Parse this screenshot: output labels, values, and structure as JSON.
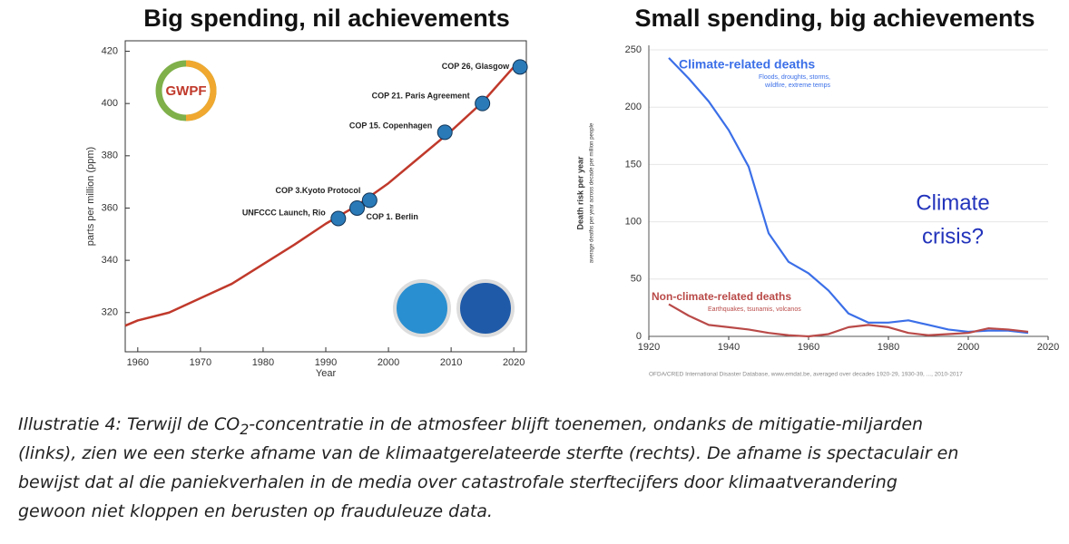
{
  "chart_data": [
    {
      "type": "line",
      "title": "Big spending, nil achievements",
      "xlabel": "Year",
      "ylabel": "parts per million (ppm)",
      "x": [
        1958,
        1960,
        1965,
        1970,
        1975,
        1980,
        1985,
        1990,
        1995,
        2000,
        2005,
        2010,
        2015,
        2020
      ],
      "series": [
        {
          "color": "#c0392b",
          "values": [
            315,
            317,
            320,
            325.5,
            331,
            338.5,
            346,
            354,
            361,
            369.5,
            379.5,
            389.5,
            400.5,
            414
          ]
        }
      ],
      "annotations": [
        {
          "label": "UNFCCC Launch, Rio",
          "x": 1992,
          "y": 356
        },
        {
          "label": "COP 1. Berlin",
          "x": 1995,
          "y": 360
        },
        {
          "label": "COP 3.Kyoto Protocol",
          "x": 1997,
          "y": 363
        },
        {
          "label": "COP 15. Copenhagen",
          "x": 2009,
          "y": 389
        },
        {
          "label": "COP 21. Paris Agreement",
          "x": 2015,
          "y": 400
        },
        {
          "label": "COP 26, Glasgow",
          "x": 2021,
          "y": 414
        }
      ],
      "logo": "GWPF",
      "xlim": [
        1958,
        2022
      ],
      "ylim": [
        305,
        424
      ],
      "xticks": [
        1960,
        1970,
        1980,
        1990,
        2000,
        2010,
        2020
      ],
      "yticks": [
        320,
        340,
        360,
        380,
        400,
        420
      ],
      "grid": false
    },
    {
      "type": "line",
      "title": "Small spending, big achievements",
      "ylabel": "Death risk per year",
      "ysublabel": "average deaths per year across decade per million people",
      "x": [
        1925,
        1930,
        1935,
        1940,
        1945,
        1950,
        1955,
        1960,
        1965,
        1970,
        1975,
        1980,
        1985,
        1990,
        1995,
        2000,
        2005,
        2010,
        2015
      ],
      "series": [
        {
          "name": "Climate-related deaths",
          "description": [
            "Floods, droughts, storms,",
            "wildfire, extreme temps"
          ],
          "color": "#3b6fe8",
          "values": [
            243,
            225,
            205,
            180,
            148,
            90,
            65,
            55,
            40,
            20,
            12,
            12,
            14,
            10,
            6,
            4,
            5,
            5,
            3
          ]
        },
        {
          "name": "Non-climate-related deaths",
          "description": [
            "Earthquakes, tsunamis, volcanos"
          ],
          "color": "#b94a48",
          "values": [
            28,
            18,
            10,
            8,
            6,
            3,
            1,
            0,
            2,
            8,
            10,
            8,
            3,
            1,
            2,
            3,
            7,
            6,
            4
          ]
        }
      ],
      "annotation": [
        "Climate",
        "crisis?"
      ],
      "source": "OFDA/CRED International Disaster Database, www.emdat.be, averaged over decades 1920-29, 1930-39, ..., 2010-2017",
      "xlim": [
        1920,
        2020
      ],
      "ylim": [
        0,
        250
      ],
      "xticks": [
        1920,
        1940,
        1960,
        1980,
        2000,
        2020
      ],
      "yticks": [
        0,
        50,
        100,
        150,
        200,
        250
      ],
      "grid": true
    }
  ],
  "caption": {
    "before": "Illustratie 4: Terwijl de CO",
    "subscript": "2",
    "after": "-concentratie in de atmosfeer blijft toenemen, ondanks de mitigatie-miljarden",
    "lines": [
      "(links), zien we een sterke afname van de klimaatgerelateerde sterfte (rechts). De afname is spectaculair en",
      "bewijst dat al die paniekverhalen in de media over catastrofale sterftecijfers door klimaatverandering",
      "gewoon niet kloppen en berusten op frauduleuze data."
    ]
  }
}
